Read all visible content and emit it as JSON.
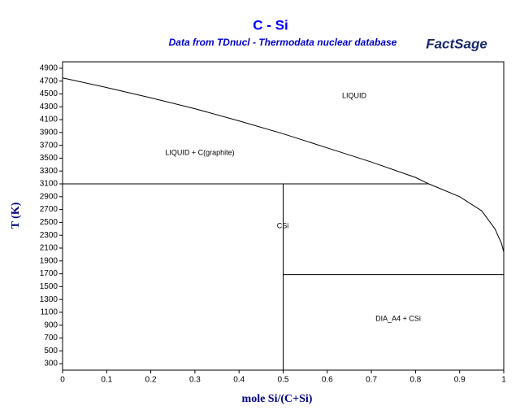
{
  "chart_data": {
    "type": "line",
    "title": "C - Si",
    "subtitle": "Data from TDnucl - Thermodata nuclear database",
    "logo": "FactSage",
    "x_label": "mole Si/(C+Si)",
    "y_label": "T (K)",
    "xlim": [
      0,
      1
    ],
    "ylim": [
      200,
      5000
    ],
    "xticks": [
      0,
      0.1,
      0.2,
      0.3,
      0.4,
      0.5,
      0.6,
      0.7,
      0.8,
      0.9,
      1
    ],
    "yticks": [
      300,
      500,
      700,
      900,
      1100,
      1300,
      1500,
      1700,
      1900,
      2100,
      2300,
      2500,
      2700,
      2900,
      3100,
      3300,
      3500,
      3700,
      3900,
      4100,
      4300,
      4500,
      4700,
      4900
    ],
    "series": [
      {
        "color": "#000000",
        "x": [
          0,
          0.1,
          0.2,
          0.3,
          0.4,
          0.5,
          0.6,
          0.7,
          0.8,
          0.83,
          0.9,
          0.95,
          0.98,
          0.995,
          1
        ],
        "values": [
          4750,
          4600,
          4440,
          4270,
          4080,
          3880,
          3660,
          3440,
          3200,
          3100,
          2900,
          2680,
          2400,
          2170,
          2040
        ]
      },
      {
        "color": "#000000",
        "x": [
          0,
          0.83
        ],
        "values": [
          3100,
          3100
        ]
      },
      {
        "color": "#000000",
        "x": [
          0.5,
          0.5
        ],
        "values": [
          3100,
          200
        ]
      },
      {
        "color": "#000000",
        "x": [
          0.5,
          1
        ],
        "values": [
          1687,
          1687
        ]
      }
    ],
    "annotations": [
      "LIQUID",
      "LIQUID + C(graphite)",
      "CSi",
      "DIA_A4 + CSi"
    ]
  }
}
